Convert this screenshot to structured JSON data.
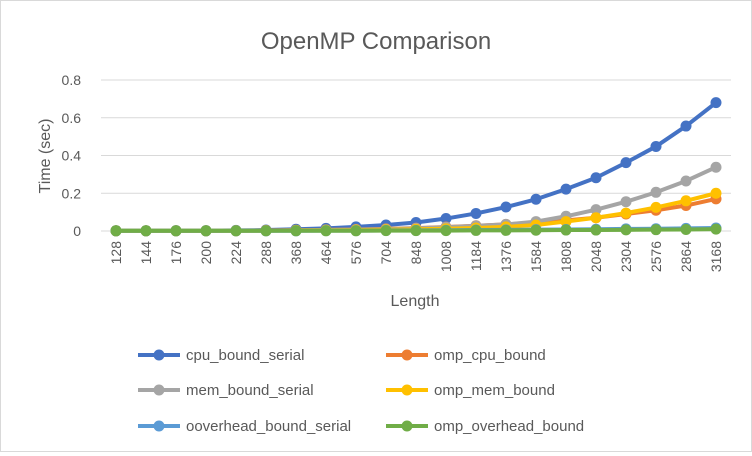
{
  "chart_data": {
    "type": "line",
    "title": "OpenMP Comparison",
    "xlabel": "Length",
    "ylabel": "Time (sec)",
    "ylim": [
      0,
      0.8
    ],
    "yticks": [
      "0",
      "0.2",
      "0.4",
      "0.6",
      "0.8"
    ],
    "categories": [
      "128",
      "144",
      "176",
      "200",
      "224",
      "288",
      "368",
      "464",
      "576",
      "704",
      "848",
      "1008",
      "1184",
      "1376",
      "1584",
      "1808",
      "2048",
      "2304",
      "2576",
      "2864",
      "3168"
    ],
    "grid": true,
    "legend_position": "bottom",
    "series": [
      {
        "name": "cpu_bound_serial",
        "color": "#4472C4",
        "values": [
          0.001,
          0.001,
          0.002,
          0.002,
          0.003,
          0.005,
          0.009,
          0.014,
          0.022,
          0.032,
          0.045,
          0.066,
          0.093,
          0.127,
          0.168,
          0.222,
          0.282,
          0.362,
          0.448,
          0.556,
          0.68
        ]
      },
      {
        "name": "omp_cpu_bound",
        "color": "#ED7D31",
        "values": [
          0.001,
          0.001,
          0.001,
          0.001,
          0.002,
          0.003,
          0.004,
          0.006,
          0.008,
          0.011,
          0.015,
          0.021,
          0.028,
          0.035,
          0.044,
          0.056,
          0.07,
          0.09,
          0.11,
          0.135,
          0.17
        ]
      },
      {
        "name": "mem_bound_serial",
        "color": "#A5A5A5",
        "values": [
          0.001,
          0.001,
          0.001,
          0.001,
          0.002,
          0.002,
          0.003,
          0.005,
          0.007,
          0.01,
          0.014,
          0.02,
          0.027,
          0.035,
          0.05,
          0.078,
          0.113,
          0.155,
          0.205,
          0.265,
          0.338
        ]
      },
      {
        "name": "omp_mem_bound",
        "color": "#FFC000",
        "values": [
          0.001,
          0.001,
          0.001,
          0.001,
          0.001,
          0.002,
          0.003,
          0.004,
          0.005,
          0.007,
          0.009,
          0.012,
          0.016,
          0.022,
          0.032,
          0.05,
          0.07,
          0.095,
          0.125,
          0.16,
          0.2
        ]
      },
      {
        "name": "ooverhead_bound_serial",
        "color": "#5B9BD5",
        "values": [
          0.001,
          0.001,
          0.001,
          0.001,
          0.001,
          0.001,
          0.001,
          0.002,
          0.002,
          0.003,
          0.003,
          0.004,
          0.005,
          0.006,
          0.007,
          0.008,
          0.009,
          0.011,
          0.012,
          0.014,
          0.016
        ]
      },
      {
        "name": "omp_overhead_bound",
        "color": "#70AD47",
        "values": [
          0.001,
          0.001,
          0.001,
          0.001,
          0.001,
          0.001,
          0.001,
          0.001,
          0.001,
          0.002,
          0.002,
          0.002,
          0.003,
          0.003,
          0.004,
          0.005,
          0.005,
          0.006,
          0.007,
          0.008,
          0.01
        ]
      }
    ]
  }
}
